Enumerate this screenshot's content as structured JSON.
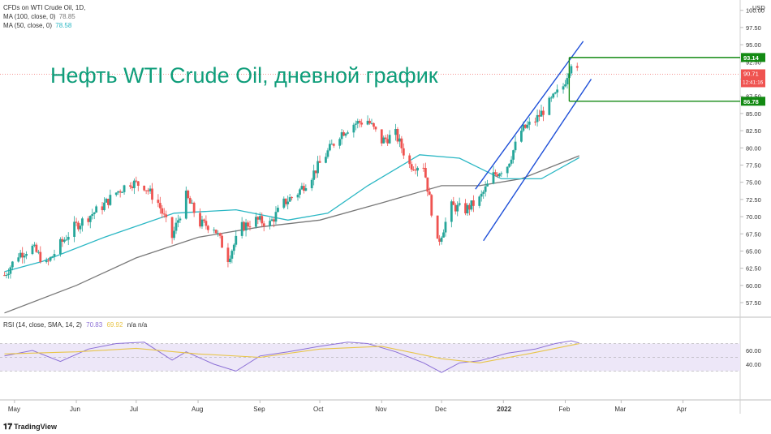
{
  "header": {
    "symbol_line": "CFDs on WTI Crude Oil, 1D,",
    "ma100_label": "MA (100, close, 0)",
    "ma100_value": "78.85",
    "ma50_label": "MA (50, close, 0)",
    "ma50_value": "78.58",
    "currency": "USD"
  },
  "overlay_title": "Нефть WTI Crude Oil, дневной график",
  "price_labels": {
    "last": "90.71",
    "countdown": "12:41:16",
    "high_level": "93.14",
    "low_level": "86.78"
  },
  "rsi_legend": {
    "label": "RSI (14, close, SMA, 14, 2)",
    "rsi_value": "70.83",
    "sma_value": "69.92",
    "extra": "n/a  n/a"
  },
  "brand": "TradingView",
  "colors": {
    "up": "#26a69a",
    "down": "#ef5350",
    "ma50": "#2ab7c4",
    "ma100": "#787878",
    "channel": "#1e4fd8",
    "level": "#138a13",
    "rsi": "#8b6fd6",
    "rsi_sma": "#e8c54a",
    "title": "#0f9d7a"
  },
  "chart_data": {
    "type": "candlestick",
    "title": "CFDs on WTI Crude Oil, 1D",
    "yunit": "USD",
    "x_tick_labels": [
      "May",
      "Jun",
      "Jul",
      "Aug",
      "Sep",
      "Oct",
      "Nov",
      "Dec",
      "2022",
      "Feb",
      "Mar",
      "Apr"
    ],
    "y_tick_labels": [
      "57.50",
      "60.00",
      "62.50",
      "65.00",
      "67.50",
      "70.00",
      "72.50",
      "75.00",
      "77.50",
      "80.00",
      "82.50",
      "85.00",
      "87.50",
      "90.00",
      "92.50",
      "95.00",
      "97.50",
      "100.00"
    ],
    "ylim": [
      55.5,
      101.5
    ],
    "close_path": [
      [
        "2021-04-26",
        61.5
      ],
      [
        "2021-05-03",
        64.5
      ],
      [
        "2021-05-10",
        65.5
      ],
      [
        "2021-05-17",
        63.0
      ],
      [
        "2021-05-24",
        66.0
      ],
      [
        "2021-05-31",
        68.5
      ],
      [
        "2021-06-07",
        70.0
      ],
      [
        "2021-06-14",
        71.5
      ],
      [
        "2021-06-21",
        73.5
      ],
      [
        "2021-06-28",
        75.0
      ],
      [
        "2021-07-05",
        74.5
      ],
      [
        "2021-07-12",
        72.0
      ],
      [
        "2021-07-19",
        67.0
      ],
      [
        "2021-07-26",
        73.0
      ],
      [
        "2021-08-02",
        69.0
      ],
      [
        "2021-08-09",
        68.5
      ],
      [
        "2021-08-16",
        64.0
      ],
      [
        "2021-08-23",
        68.5
      ],
      [
        "2021-08-30",
        69.5
      ],
      [
        "2021-09-06",
        69.0
      ],
      [
        "2021-09-13",
        72.0
      ],
      [
        "2021-09-20",
        73.5
      ],
      [
        "2021-09-27",
        76.0
      ],
      [
        "2021-10-04",
        79.0
      ],
      [
        "2021-10-11",
        82.0
      ],
      [
        "2021-10-18",
        83.5
      ],
      [
        "2021-10-25",
        84.0
      ],
      [
        "2021-11-01",
        81.0
      ],
      [
        "2021-11-08",
        82.0
      ],
      [
        "2021-11-15",
        77.5
      ],
      [
        "2021-11-22",
        77.5
      ],
      [
        "2021-11-29",
        66.0
      ],
      [
        "2021-12-06",
        71.5
      ],
      [
        "2021-12-13",
        71.0
      ],
      [
        "2021-12-20",
        72.5
      ],
      [
        "2021-12-27",
        76.0
      ],
      [
        "2022-01-03",
        77.5
      ],
      [
        "2022-01-10",
        82.5
      ],
      [
        "2022-01-17",
        84.0
      ],
      [
        "2022-01-24",
        86.5
      ],
      [
        "2022-01-31",
        89.0
      ],
      [
        "2022-02-04",
        92.5
      ],
      [
        "2022-02-07",
        91.0
      ],
      [
        "2022-02-08",
        90.71
      ]
    ],
    "series": [
      {
        "name": "MA (100, close, 0)",
        "values": [
          [
            "2021-04-26",
            56.0
          ],
          [
            "2021-06-01",
            60.0
          ],
          [
            "2021-07-01",
            64.0
          ],
          [
            "2021-08-01",
            67.0
          ],
          [
            "2021-09-01",
            68.5
          ],
          [
            "2021-10-01",
            69.5
          ],
          [
            "2021-11-01",
            72.0
          ],
          [
            "2021-12-01",
            74.5
          ],
          [
            "2021-12-20",
            74.5
          ],
          [
            "2022-01-10",
            75.5
          ],
          [
            "2022-02-08",
            78.85
          ]
        ]
      },
      {
        "name": "MA (50, close, 0)",
        "values": [
          [
            "2021-04-26",
            62.0
          ],
          [
            "2021-05-15",
            63.5
          ],
          [
            "2021-06-15",
            67.0
          ],
          [
            "2021-07-20",
            70.5
          ],
          [
            "2021-08-20",
            71.0
          ],
          [
            "2021-09-15",
            69.5
          ],
          [
            "2021-10-05",
            70.5
          ],
          [
            "2021-10-25",
            74.5
          ],
          [
            "2021-11-20",
            79.0
          ],
          [
            "2021-12-10",
            78.5
          ],
          [
            "2021-12-31",
            75.5
          ],
          [
            "2022-01-20",
            75.5
          ],
          [
            "2022-02-08",
            78.58
          ]
        ]
      }
    ],
    "channel": {
      "upper": [
        [
          "2021-12-18",
          74.0
        ],
        [
          "2022-02-10",
          95.5
        ]
      ],
      "lower": [
        [
          "2021-12-22",
          66.5
        ],
        [
          "2022-02-14",
          90.0
        ]
      ]
    },
    "levels": [
      93.14,
      86.78
    ],
    "rsi_panel": {
      "ylabels": [
        "40.00",
        "60.00"
      ],
      "bands": [
        70,
        30
      ],
      "series": [
        {
          "name": "RSI",
          "values": [
            [
              "2021-04-26",
              52
            ],
            [
              "2021-05-10",
              60
            ],
            [
              "2021-05-24",
              44
            ],
            [
              "2021-06-07",
              62
            ],
            [
              "2021-06-21",
              70
            ],
            [
              "2021-07-05",
              72
            ],
            [
              "2021-07-19",
              46
            ],
            [
              "2021-07-26",
              58
            ],
            [
              "2021-08-09",
              40
            ],
            [
              "2021-08-20",
              30
            ],
            [
              "2021-09-01",
              52
            ],
            [
              "2021-09-15",
              58
            ],
            [
              "2021-10-01",
              66
            ],
            [
              "2021-10-15",
              72
            ],
            [
              "2021-10-25",
              70
            ],
            [
              "2021-11-08",
              58
            ],
            [
              "2021-11-22",
              42
            ],
            [
              "2021-12-01",
              28
            ],
            [
              "2021-12-10",
              42
            ],
            [
              "2021-12-20",
              45
            ],
            [
              "2022-01-03",
              56
            ],
            [
              "2022-01-17",
              62
            ],
            [
              "2022-01-27",
              70
            ],
            [
              "2022-02-04",
              74
            ],
            [
              "2022-02-08",
              70.83
            ]
          ]
        },
        {
          "name": "SMA",
          "values": [
            [
              "2021-04-26",
              55
            ],
            [
              "2021-06-01",
              58
            ],
            [
              "2021-07-01",
              63
            ],
            [
              "2021-08-01",
              55
            ],
            [
              "2021-09-01",
              50
            ],
            [
              "2021-10-01",
              62
            ],
            [
              "2021-11-01",
              66
            ],
            [
              "2021-12-01",
              48
            ],
            [
              "2021-12-20",
              42
            ],
            [
              "2022-01-15",
              56
            ],
            [
              "2022-02-08",
              69.92
            ]
          ]
        }
      ]
    }
  }
}
